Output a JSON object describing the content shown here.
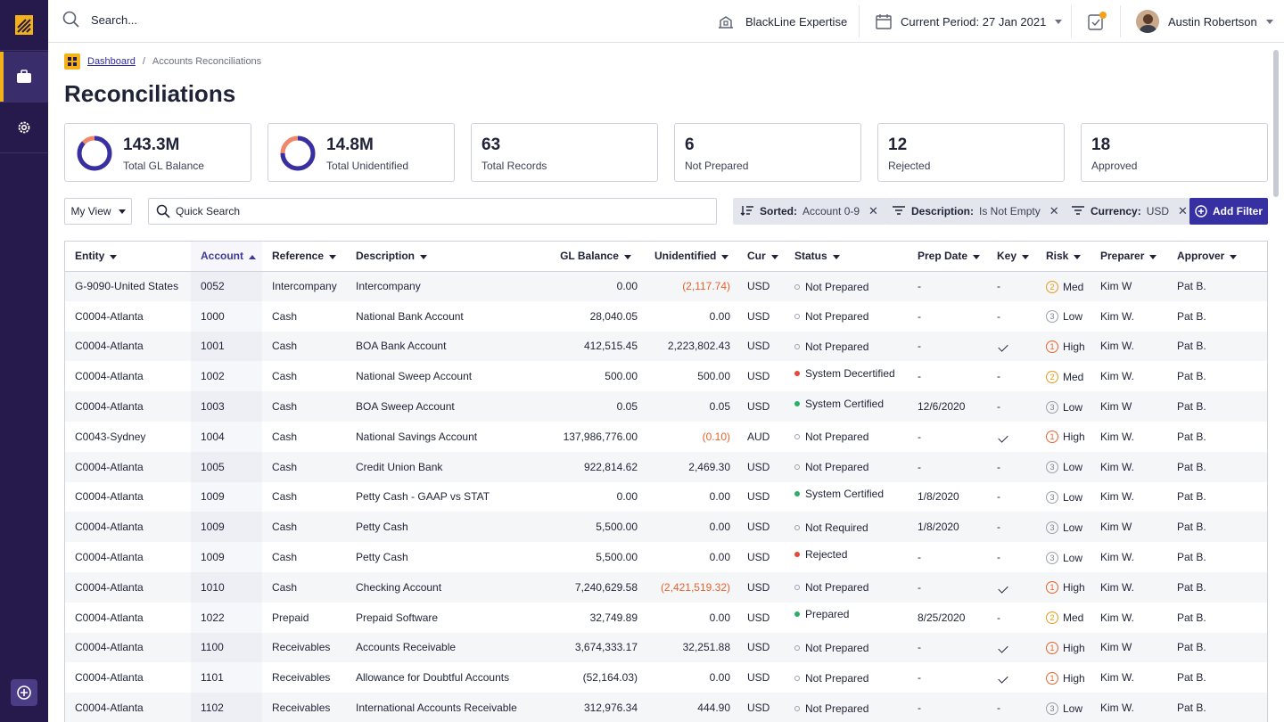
{
  "colors": {
    "rail": "#251a4b",
    "accent": "#f3b21b",
    "primary": "#3730a3",
    "negative": "#e8622b"
  },
  "topbar": {
    "search_placeholder": "Search...",
    "expertise_label": "BlackLine Expertise",
    "period_label": "Current Period: 27 Jan 2021",
    "user_name": "Austin Robertson"
  },
  "breadcrumb": {
    "home": "Dashboard",
    "sep": "/",
    "current": "Accounts Reconciliations"
  },
  "page_title": "Reconciliations",
  "summary": [
    {
      "value": "143.3M",
      "label": "Total GL Balance",
      "donut": true,
      "fill": 0.87
    },
    {
      "value": "14.8M",
      "label": "Total Unidentified",
      "donut": true,
      "fill": 0.75
    },
    {
      "value": "63",
      "label": "Total Records"
    },
    {
      "value": "6",
      "label": "Not Prepared"
    },
    {
      "value": "12",
      "label": "Rejected"
    },
    {
      "value": "18",
      "label": "Approved"
    }
  ],
  "filters": {
    "view_label": "My View",
    "quick_search_placeholder": "Quick Search",
    "chips": [
      {
        "key": "Sorted:",
        "value": "Account 0-9",
        "icon": "sort-icon"
      },
      {
        "key": "Description:",
        "value": "Is Not Empty",
        "icon": "filter-icon"
      },
      {
        "key": "Currency:",
        "value": "USD",
        "icon": "filter-icon"
      }
    ],
    "add_filter_label": "Add Filter"
  },
  "columns": [
    "Entity",
    "Account",
    "Reference",
    "Description",
    "GL Balance",
    "Unidentified",
    "Cur",
    "Status",
    "Prep Date",
    "Key",
    "Risk",
    "Preparer",
    "Approver"
  ],
  "rows": [
    {
      "entity": "G-9090-United States",
      "account": "0052",
      "reference": "Intercompany",
      "description": "Intercompany",
      "gl": "0.00",
      "unid": "(2,117.74)",
      "unid_neg": true,
      "cur": "USD",
      "status": "Not Prepared",
      "status_type": "ring",
      "prep": "-",
      "key": "-",
      "risk": "Med",
      "risk_num": "2",
      "preparer": "Kim W",
      "approver": "Pat B."
    },
    {
      "entity": "C0004-Atlanta",
      "account": "1000",
      "reference": "Cash",
      "description": "National Bank Account",
      "gl": "28,040.05",
      "unid": "0.00",
      "cur": "USD",
      "status": "Not Prepared",
      "status_type": "ring",
      "prep": "-",
      "key": "-",
      "risk": "Low",
      "risk_num": "3",
      "preparer": "Kim W.",
      "approver": "Pat B."
    },
    {
      "entity": "C0004-Atlanta",
      "account": "1001",
      "reference": "Cash",
      "description": "BOA Bank Account",
      "gl": "412,515.45",
      "unid": "2,223,802.43",
      "cur": "USD",
      "status": "Not Prepared",
      "status_type": "ring",
      "prep": "-",
      "key": "check",
      "risk": "High",
      "risk_num": "1",
      "preparer": "Kim W.",
      "approver": "Pat B."
    },
    {
      "entity": "C0004-Atlanta",
      "account": "1002",
      "reference": "Cash",
      "description": "National Sweep Account",
      "gl": "500.00",
      "unid": "500.00",
      "cur": "USD",
      "status": "System Decertified",
      "status_type": "red",
      "prep": "-",
      "key": "-",
      "risk": "Med",
      "risk_num": "2",
      "preparer": "Kim W.",
      "approver": "Pat B."
    },
    {
      "entity": "C0004-Atlanta",
      "account": "1003",
      "reference": "Cash",
      "description": "BOA Sweep Account",
      "gl": "0.05",
      "unid": "0.05",
      "cur": "USD",
      "status": "System Certified",
      "status_type": "green",
      "prep": "12/6/2020",
      "key": "-",
      "risk": "Low",
      "risk_num": "3",
      "preparer": "Kim W",
      "approver": "Pat B."
    },
    {
      "entity": "C0043-Sydney",
      "account": "1004",
      "reference": "Cash",
      "description": "National Savings Account",
      "gl": "137,986,776.00",
      "unid": "(0.10)",
      "unid_neg": true,
      "cur": "AUD",
      "status": "Not Prepared",
      "status_type": "ring",
      "prep": "-",
      "key": "check",
      "risk": "High",
      "risk_num": "1",
      "preparer": "Kim W.",
      "approver": "Pat B."
    },
    {
      "entity": "C0004-Atlanta",
      "account": "1005",
      "reference": "Cash",
      "description": "Credit Union Bank",
      "gl": "922,814.62",
      "unid": "2,469.30",
      "cur": "USD",
      "status": "Not Prepared",
      "status_type": "ring",
      "prep": "-",
      "key": "-",
      "risk": "Low",
      "risk_num": "3",
      "preparer": "Kim W.",
      "approver": "Pat B."
    },
    {
      "entity": "C0004-Atlanta",
      "account": "1009",
      "reference": "Cash",
      "description": "Petty Cash - GAAP vs STAT",
      "gl": "0.00",
      "unid": "0.00",
      "cur": "USD",
      "status": "System Certified",
      "status_type": "green",
      "prep": "1/8/2020",
      "key": "-",
      "risk": "Low",
      "risk_num": "3",
      "preparer": "Kim W.",
      "approver": "Pat B."
    },
    {
      "entity": "C0004-Atlanta",
      "account": "1009",
      "reference": "Cash",
      "description": "Petty Cash",
      "gl": "5,500.00",
      "unid": "0.00",
      "cur": "USD",
      "status": "Not Required",
      "status_type": "ring",
      "prep": "1/8/2020",
      "key": "-",
      "risk": "Low",
      "risk_num": "3",
      "preparer": "Kim W",
      "approver": "Pat B."
    },
    {
      "entity": "C0004-Atlanta",
      "account": "1009",
      "reference": "Cash",
      "description": "Petty Cash",
      "gl": "5,500.00",
      "unid": "0.00",
      "cur": "USD",
      "status": "Rejected",
      "status_type": "red",
      "prep": "-",
      "key": "-",
      "risk": "Low",
      "risk_num": "3",
      "preparer": "Kim W.",
      "approver": "Pat B."
    },
    {
      "entity": "C0004-Atlanta",
      "account": "1010",
      "reference": "Cash",
      "description": "Checking Account",
      "gl": "7,240,629.58",
      "unid": "(2,421,519.32)",
      "unid_neg": true,
      "cur": "USD",
      "status": "Not Prepared",
      "status_type": "ring",
      "prep": "-",
      "key": "check",
      "risk": "High",
      "risk_num": "1",
      "preparer": "Kim W.",
      "approver": "Pat B."
    },
    {
      "entity": "C0004-Atlanta",
      "account": "1022",
      "reference": "Prepaid",
      "description": " Prepaid Software",
      "gl": "32,749.89",
      "unid": "0.00",
      "cur": "USD",
      "status": "Prepared",
      "status_type": "green",
      "prep": "8/25/2020",
      "key": "-",
      "risk": "Med",
      "risk_num": "2",
      "preparer": "Kim W.",
      "approver": "Pat B."
    },
    {
      "entity": "C0004-Atlanta",
      "account": "1100",
      "reference": "Receivables",
      "description": "Accounts Receivable",
      "gl": "3,674,333.17",
      "unid": "32,251.88",
      "cur": "USD",
      "status": "Not Prepared",
      "status_type": "ring",
      "prep": "-",
      "key": "check",
      "risk": "High",
      "risk_num": "1",
      "preparer": "Kim W",
      "approver": "Pat B."
    },
    {
      "entity": "C0004-Atlanta",
      "account": "1101",
      "reference": "Receivables",
      "description": "Allowance for Doubtful Accounts",
      "gl": "(52,164.03)",
      "unid": "0.00",
      "cur": "USD",
      "status": "Not Prepared",
      "status_type": "ring",
      "prep": "-",
      "key": "check",
      "risk": "High",
      "risk_num": "1",
      "preparer": "Kim W.",
      "approver": "Pat B."
    },
    {
      "entity": "C0004-Atlanta",
      "account": "1102",
      "reference": "Receivables",
      "description": "International Accounts Receivable",
      "gl": "312,976.34",
      "unid": "444.90",
      "cur": "USD",
      "status": "Not Prepared",
      "status_type": "ring",
      "prep": "-",
      "key": "-",
      "risk": "Low",
      "risk_num": "3",
      "preparer": "Kim W.",
      "approver": "Pat B."
    }
  ]
}
